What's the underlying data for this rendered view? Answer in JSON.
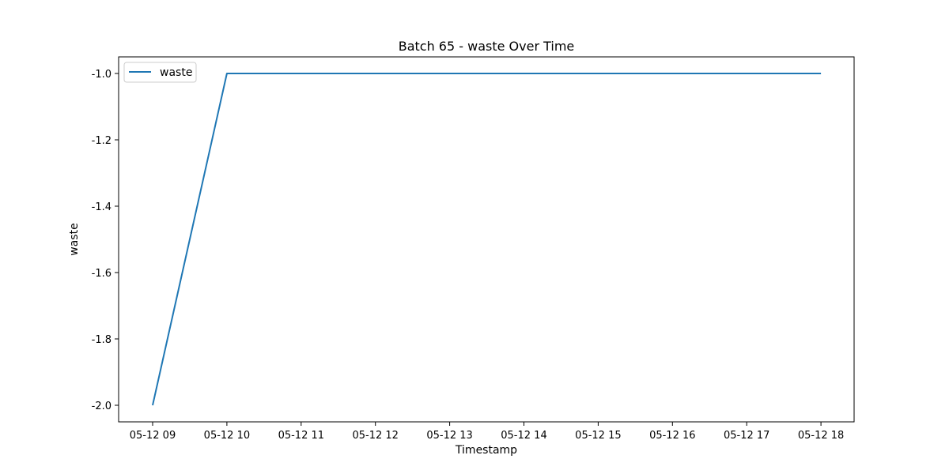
{
  "chart_data": {
    "type": "line",
    "title": "Batch 65 - waste Over Time",
    "xlabel": "Timestamp",
    "ylabel": "waste",
    "x_tick_labels": [
      "05-12 09",
      "05-12 10",
      "05-12 11",
      "05-12 12",
      "05-12 13",
      "05-12 14",
      "05-12 15",
      "05-12 16",
      "05-12 17",
      "05-12 18"
    ],
    "y_tick_labels": [
      "-1.0",
      "-1.2",
      "-1.4",
      "-1.6",
      "-1.8",
      "-2.0"
    ],
    "y_ticks": [
      -1.0,
      -1.2,
      -1.4,
      -1.6,
      -1.8,
      -2.0
    ],
    "ylim": [
      -2.05,
      -0.95
    ],
    "x": [
      "05-12 09",
      "05-12 10",
      "05-12 11",
      "05-12 12",
      "05-12 13",
      "05-12 14",
      "05-12 15",
      "05-12 16",
      "05-12 17",
      "05-12 18"
    ],
    "series": [
      {
        "name": "waste",
        "color": "#1f77b4",
        "values": [
          -2.0,
          -1.0,
          -1.0,
          -1.0,
          -1.0,
          -1.0,
          -1.0,
          -1.0,
          -1.0,
          -1.0
        ]
      }
    ],
    "legend_position": "top-left",
    "grid": false
  }
}
